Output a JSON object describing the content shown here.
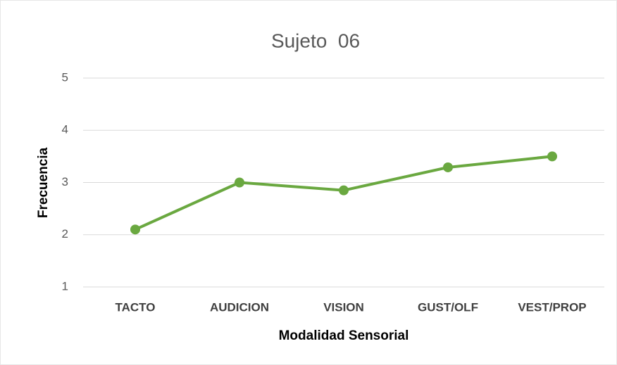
{
  "chart_data": {
    "type": "line",
    "title": "Sujeto  06",
    "x_label": "Modalidad Sensorial",
    "y_label": "Frecuencia",
    "categories": [
      "TACTO",
      "AUDICION",
      "VISION",
      "GUST/OLF",
      "VEST/PROP"
    ],
    "values": [
      2.1,
      3.0,
      2.85,
      3.29,
      3.5
    ],
    "color": "#6aa840",
    "ylim": [
      1,
      5
    ],
    "yticks": [
      1,
      2,
      3,
      4,
      5
    ],
    "grid": true
  }
}
